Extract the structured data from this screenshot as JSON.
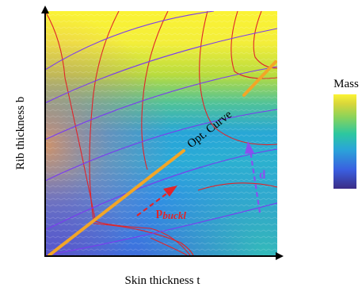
{
  "figure": {
    "x_axis_label": "Skin thickness t",
    "y_axis_label": "Rib thickness b",
    "optimal_curve_label": "Opt. Curve",
    "vector_d_label": "d",
    "vector_p_label": "p",
    "vector_p_subscript": "buckl",
    "colorbar": {
      "title": "Mass",
      "colors": [
        "#3b2c86",
        "#3a5fe0",
        "#2aa6d8",
        "#2cc7a0",
        "#8bd35a",
        "#d8d63a",
        "#fbf334"
      ]
    },
    "colors": {
      "contour_red": "#e0242a",
      "contour_purple": "#7a3cf0",
      "optimal_curve": "#f2a627",
      "arrow_red": "#e0242a",
      "arrow_purple": "#8a4ff0"
    }
  }
}
